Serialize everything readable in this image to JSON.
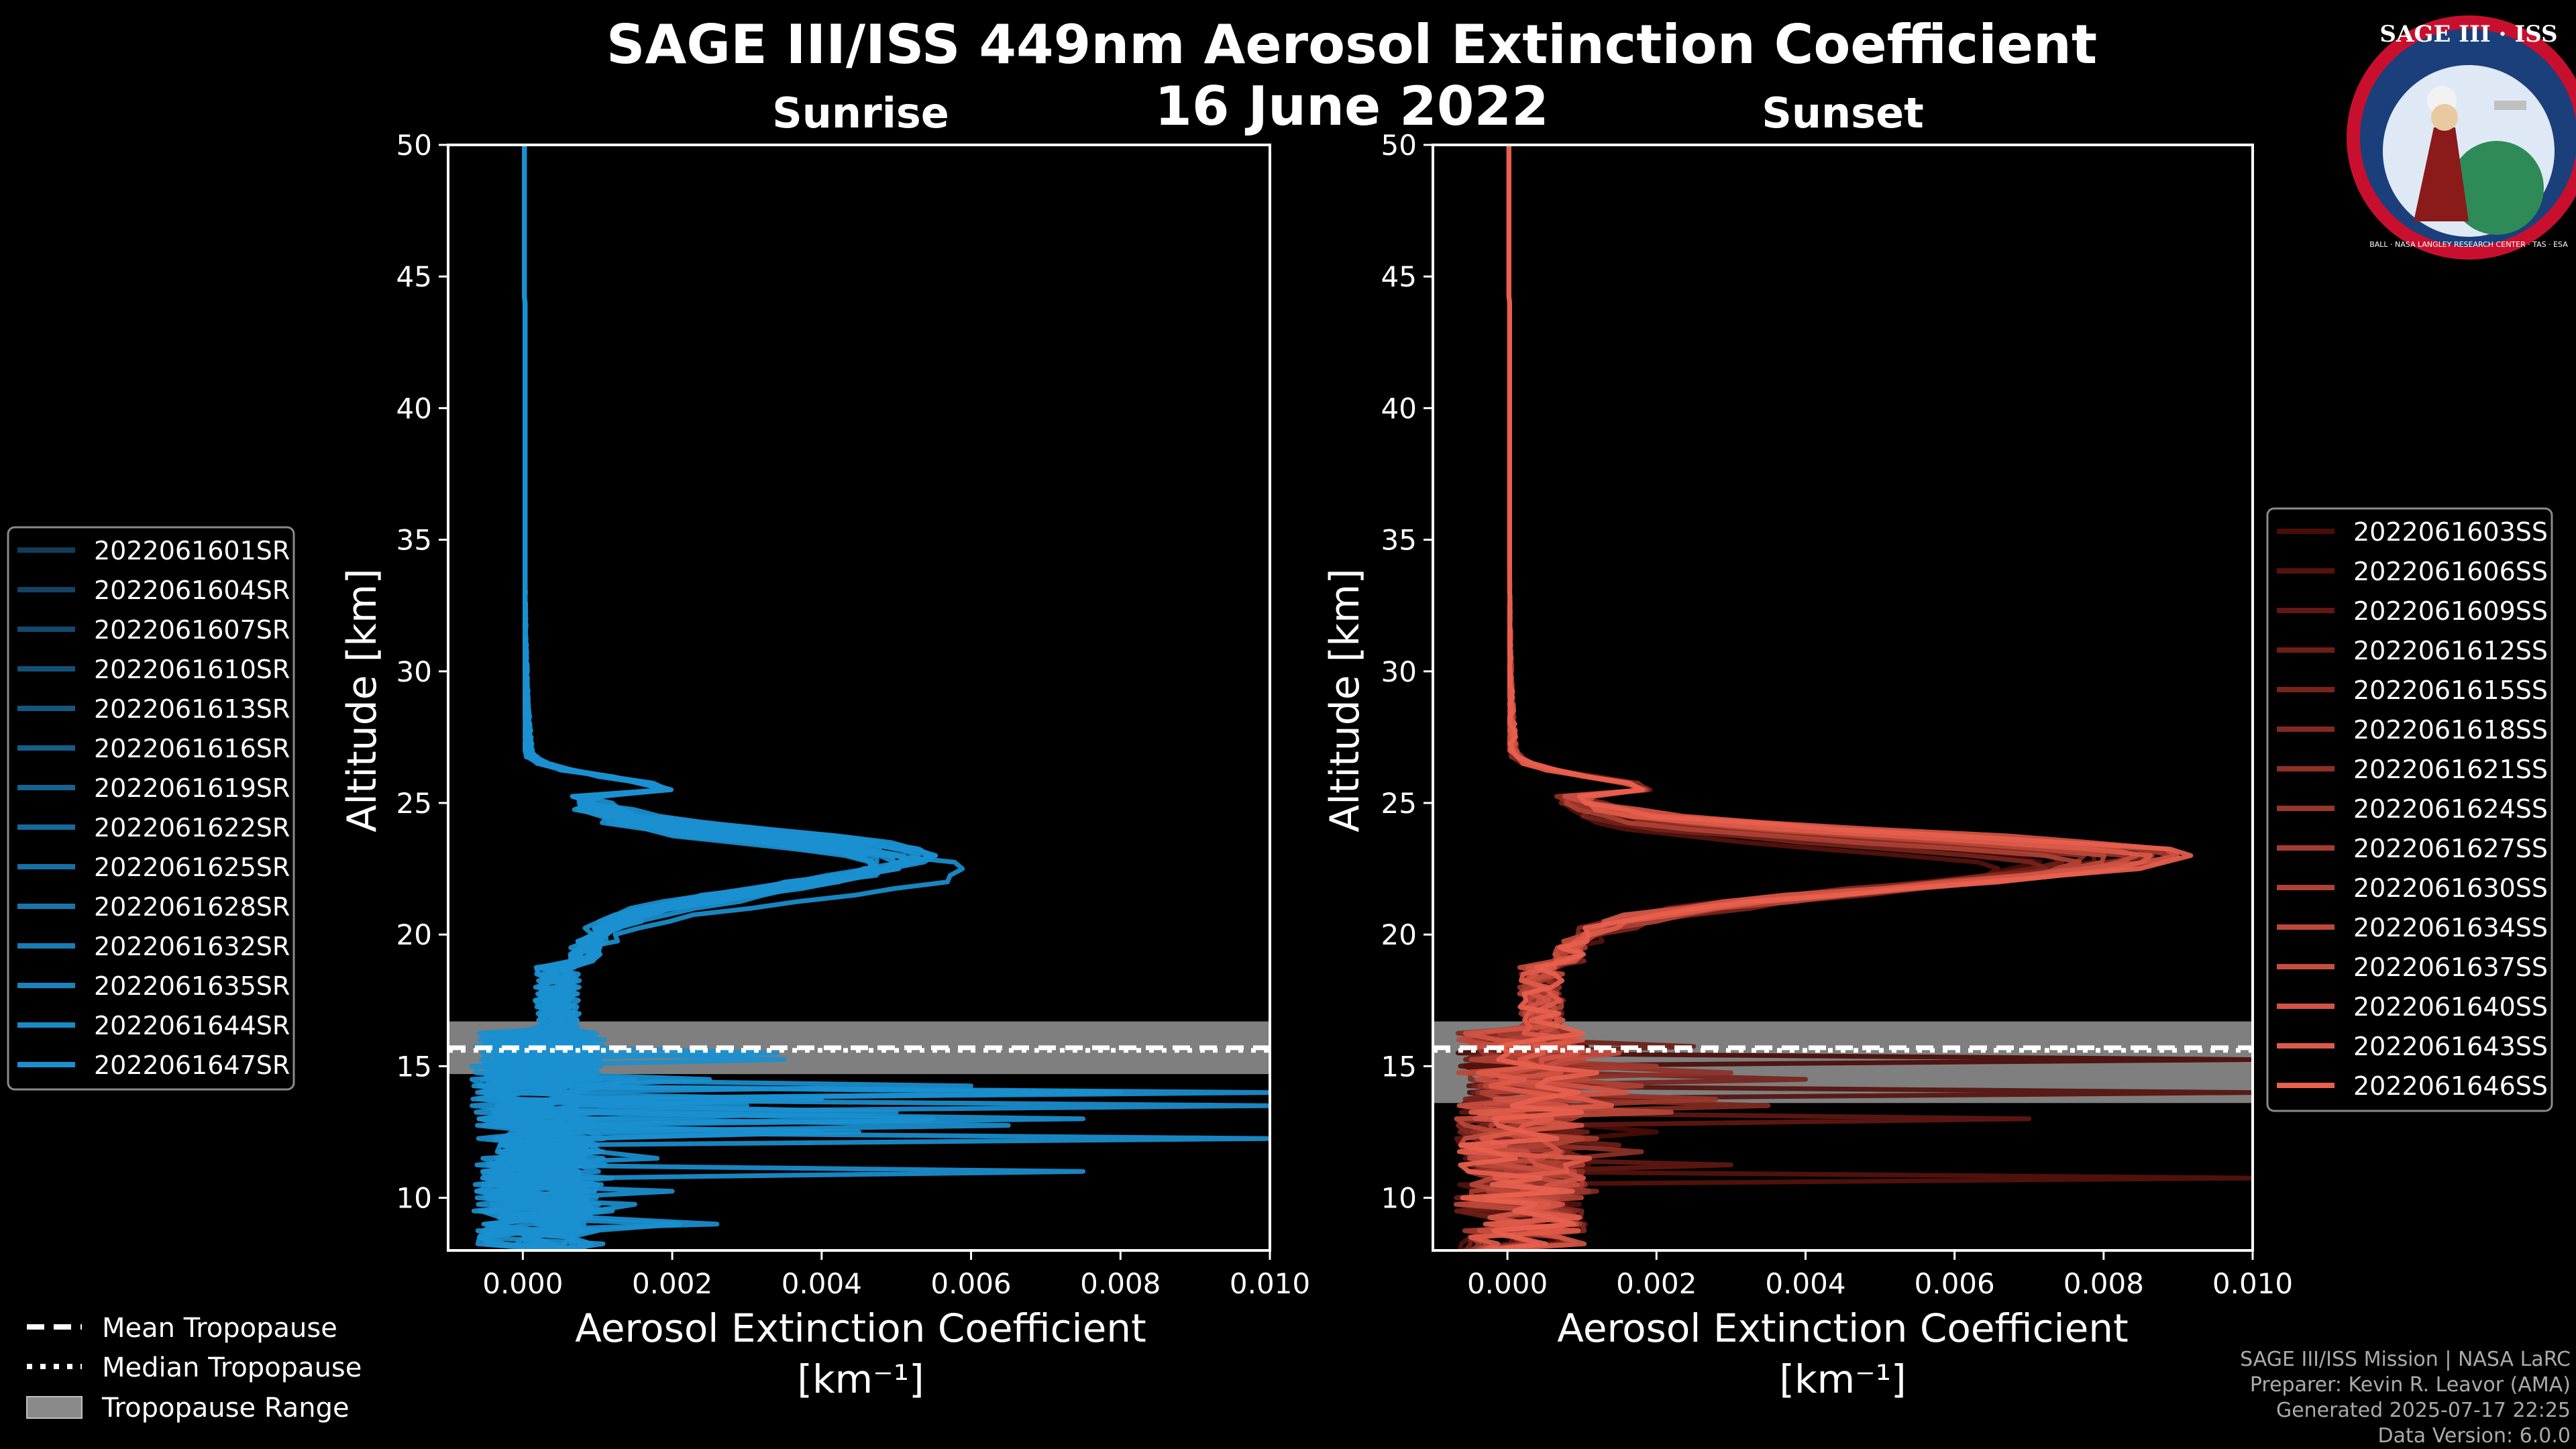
{
  "header": {
    "title_line1": "SAGE III/ISS 449nm Aerosol Extinction Coefficient",
    "title_line2": "16 June 2022"
  },
  "logo": {
    "top_text": "SAGE III · ISS",
    "ring_text": "BALL · NASA LANGLEY RESEARCH CENTER · TAS · ESA"
  },
  "footer": {
    "line1": "SAGE III/ISS Mission | NASA LaRC",
    "line2": "Preparer: Kevin R. Leavor (AMA)",
    "line3": "Generated 2025-07-17 22:25",
    "line4": "Data Version: 6.0.0"
  },
  "global_legend": {
    "mean": "Mean Tropopause",
    "median": "Median Tropopause",
    "range": "Tropopause Range"
  },
  "chart_data": [
    {
      "type": "line",
      "title": "Sunrise",
      "xlabel": "Aerosol Extinction Coefficient",
      "xunit": "[km⁻¹]",
      "ylabel": "Altitude [km]",
      "xlim": [
        -0.001,
        0.01
      ],
      "ylim": [
        8,
        50
      ],
      "xticks": [
        "0.000",
        "0.002",
        "0.004",
        "0.006",
        "0.008",
        "0.010"
      ],
      "xtick_values": [
        0,
        0.002,
        0.004,
        0.006,
        0.008,
        0.01
      ],
      "yticks": [
        10,
        15,
        20,
        25,
        30,
        35,
        40,
        45,
        50
      ],
      "series_color": "#1a90d0",
      "tropopause": {
        "mean": 15.7,
        "median": 15.6,
        "min": 14.7,
        "max": 16.7
      },
      "series": [
        {
          "name": "2022061601SR",
          "peak": 0.0046,
          "peak_alt": 22.8,
          "noise": [
            [
              14.5,
              0.0015
            ],
            [
              12.6,
              0.0045
            ]
          ]
        },
        {
          "name": "2022061604SR",
          "peak": 0.006,
          "peak_alt": 22.5,
          "noise": [
            [
              13.8,
              0.004
            ],
            [
              10.8,
              0.0012
            ]
          ]
        },
        {
          "name": "2022061607SR",
          "peak": 0.0052,
          "peak_alt": 22.9,
          "noise": [
            [
              14.2,
              0.006
            ],
            [
              11.9,
              0.001
            ]
          ]
        },
        {
          "name": "2022061610SR",
          "peak": 0.0049,
          "peak_alt": 23.0,
          "noise": [
            [
              12.2,
              0.01
            ],
            [
              14.9,
              0.0008
            ]
          ]
        },
        {
          "name": "2022061613SR",
          "peak": 0.0051,
          "peak_alt": 22.8,
          "noise": [
            [
              13.0,
              0.0075
            ],
            [
              9.8,
              0.0015
            ]
          ]
        },
        {
          "name": "2022061616SR",
          "peak": 0.0048,
          "peak_alt": 22.7,
          "noise": [
            [
              13.4,
              0.01
            ],
            [
              11.1,
              0.0075
            ]
          ]
        },
        {
          "name": "2022061619SR",
          "peak": 0.0053,
          "peak_alt": 23.1,
          "noise": [
            [
              15.3,
              0.0035
            ],
            [
              12.9,
              0.0055
            ]
          ]
        },
        {
          "name": "2022061622SR",
          "peak": 0.005,
          "peak_alt": 22.9,
          "noise": [
            [
              13.6,
              0.003
            ],
            [
              10.2,
              0.002
            ]
          ]
        },
        {
          "name": "2022061625SR",
          "peak": 0.0054,
          "peak_alt": 23.0,
          "noise": [
            [
              12.8,
              0.0065
            ],
            [
              9.0,
              0.0026
            ]
          ]
        },
        {
          "name": "2022061628SR",
          "peak": 0.0047,
          "peak_alt": 22.6,
          "noise": [
            [
              14.0,
              0.01
            ],
            [
              11.5,
              0.0018
            ]
          ]
        },
        {
          "name": "2022061632SR",
          "peak": 0.005,
          "peak_alt": 22.8,
          "noise": [
            [
              13.2,
              0.005
            ],
            [
              10.6,
              0.001
            ]
          ]
        },
        {
          "name": "2022061635SR",
          "peak": 0.0055,
          "peak_alt": 23.1,
          "noise": [
            [
              14.6,
              0.0025
            ],
            [
              12.4,
              0.004
            ]
          ]
        },
        {
          "name": "2022061644SR",
          "peak": 0.0048,
          "peak_alt": 22.7,
          "noise": [
            [
              13.9,
              0.008
            ],
            [
              9.4,
              0.0012
            ]
          ]
        },
        {
          "name": "2022061647SR",
          "peak": 0.0053,
          "peak_alt": 23.0,
          "noise": [
            [
              15.6,
              0.0034
            ],
            [
              8.9,
              0.0021
            ]
          ]
        }
      ]
    },
    {
      "type": "line",
      "title": "Sunset",
      "xlabel": "Aerosol Extinction Coefficient",
      "xunit": "[km⁻¹]",
      "ylabel": "Altitude [km]",
      "xlim": [
        -0.001,
        0.01
      ],
      "ylim": [
        8,
        50
      ],
      "xticks": [
        "0.000",
        "0.002",
        "0.004",
        "0.006",
        "0.008",
        "0.010"
      ],
      "xtick_values": [
        0,
        0.002,
        0.004,
        0.006,
        0.008,
        0.01
      ],
      "yticks": [
        10,
        15,
        20,
        25,
        30,
        35,
        40,
        45,
        50
      ],
      "color_dark": "#4a0c08",
      "color_light": "#e8604e",
      "tropopause": {
        "mean": 15.7,
        "median": 15.6,
        "min": 13.6,
        "max": 16.7
      },
      "series": [
        {
          "name": "2022061603SS",
          "peak": 0.007,
          "peak_alt": 22.8,
          "noise": [
            [
              15.2,
              0.01
            ],
            [
              12.6,
              0.002
            ]
          ]
        },
        {
          "name": "2022061606SS",
          "peak": 0.0065,
          "peak_alt": 22.5,
          "noise": [
            [
              14.1,
              0.01
            ],
            [
              10.7,
              0.01
            ]
          ]
        },
        {
          "name": "2022061609SS",
          "peak": 0.008,
          "peak_alt": 23.0,
          "noise": [
            [
              13.0,
              0.007
            ],
            [
              11.2,
              0.003
            ]
          ]
        },
        {
          "name": "2022061612SS",
          "peak": 0.0075,
          "peak_alt": 22.9,
          "noise": [
            [
              15.8,
              0.0025
            ],
            [
              12.0,
              0.0015
            ]
          ]
        },
        {
          "name": "2022061615SS",
          "peak": 0.0072,
          "peak_alt": 22.6,
          "noise": [
            [
              14.5,
              0.004
            ],
            [
              9.5,
              0.001
            ]
          ]
        },
        {
          "name": "2022061618SS",
          "peak": 0.0085,
          "peak_alt": 23.1,
          "noise": [
            [
              13.5,
              0.0035
            ],
            [
              10.2,
              0.0012
            ]
          ]
        },
        {
          "name": "2022061621SS",
          "peak": 0.0078,
          "peak_alt": 22.8,
          "noise": [
            [
              14.8,
              0.003
            ],
            [
              11.8,
              0.0018
            ]
          ]
        },
        {
          "name": "2022061624SS",
          "peak": 0.0082,
          "peak_alt": 22.9,
          "noise": [
            [
              13.8,
              0.0028
            ],
            [
              9.0,
              0.0008
            ]
          ]
        },
        {
          "name": "2022061627SS",
          "peak": 0.0088,
          "peak_alt": 23.0,
          "noise": [
            [
              15.0,
              0.002
            ],
            [
              12.3,
              0.0012
            ]
          ]
        },
        {
          "name": "2022061630SS",
          "peak": 0.0076,
          "peak_alt": 22.7,
          "noise": [
            [
              14.2,
              0.0018
            ],
            [
              10.5,
              0.001
            ]
          ]
        },
        {
          "name": "2022061634SS",
          "peak": 0.008,
          "peak_alt": 22.9,
          "noise": [
            [
              13.3,
              0.0022
            ],
            [
              11.0,
              0.0009
            ]
          ]
        },
        {
          "name": "2022061637SS",
          "peak": 0.0084,
          "peak_alt": 23.0,
          "noise": [
            [
              15.5,
              0.0015
            ],
            [
              9.8,
              0.0007
            ]
          ]
        },
        {
          "name": "2022061640SS",
          "peak": 0.009,
          "peak_alt": 23.1,
          "noise": [
            [
              14.0,
              0.0016
            ],
            [
              12.8,
              0.001
            ]
          ]
        },
        {
          "name": "2022061643SS",
          "peak": 0.0087,
          "peak_alt": 22.9,
          "noise": [
            [
              13.6,
              0.0014
            ],
            [
              10.9,
              0.0008
            ]
          ]
        },
        {
          "name": "2022061646SS",
          "peak": 0.0092,
          "peak_alt": 23.0,
          "noise": [
            [
              14.7,
              0.0012
            ],
            [
              9.2,
              0.0006
            ]
          ]
        }
      ]
    }
  ]
}
